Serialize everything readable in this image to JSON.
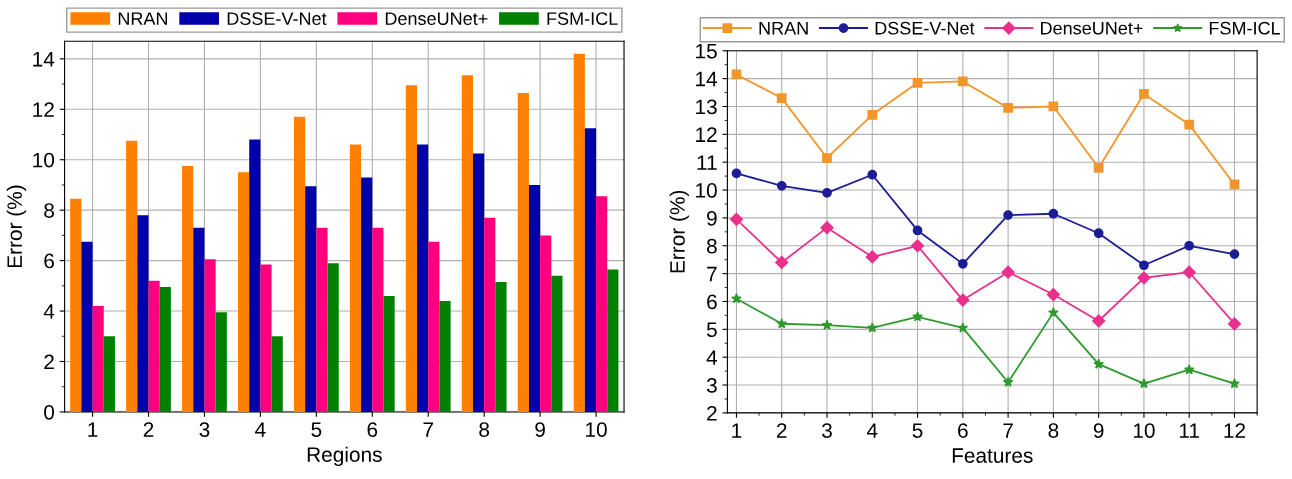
{
  "chart_data": [
    {
      "type": "bar",
      "xlabel": "Regions",
      "ylabel": "Error (%)",
      "categories": [
        "1",
        "2",
        "3",
        "4",
        "5",
        "6",
        "7",
        "8",
        "9",
        "10"
      ],
      "series": [
        {
          "name": "NRAN",
          "color": "#ff8000",
          "values": [
            8.45,
            10.75,
            9.75,
            9.5,
            11.7,
            10.6,
            12.95,
            13.35,
            12.65,
            14.2
          ]
        },
        {
          "name": "DSSE-V-Net",
          "color": "#0000a8",
          "values": [
            6.75,
            7.8,
            7.3,
            10.8,
            8.95,
            9.3,
            10.6,
            10.25,
            9.0,
            11.25
          ]
        },
        {
          "name": "DenseUNet+",
          "color": "#ff0080",
          "values": [
            4.2,
            5.2,
            6.05,
            5.85,
            7.3,
            7.3,
            6.75,
            7.7,
            7.0,
            8.55
          ]
        },
        {
          "name": "FSM-ICL",
          "color": "#008000",
          "values": [
            3.0,
            4.95,
            3.95,
            3.0,
            5.9,
            4.6,
            4.4,
            5.15,
            5.4,
            5.65
          ]
        }
      ],
      "ylim": [
        0,
        14.7
      ],
      "yticks": [
        0,
        2,
        4,
        6,
        8,
        10,
        12,
        14
      ],
      "grid": true,
      "legend": "top"
    },
    {
      "type": "line",
      "xlabel": "Features",
      "ylabel": "Error (%)",
      "x": [
        1,
        2,
        3,
        4,
        5,
        6,
        7,
        8,
        9,
        10,
        11,
        12
      ],
      "series": [
        {
          "name": "NRAN",
          "color": "#f2962b",
          "marker": "square",
          "values": [
            14.15,
            13.3,
            11.15,
            12.7,
            13.85,
            13.9,
            12.95,
            13.0,
            10.8,
            13.45,
            12.35,
            10.2
          ]
        },
        {
          "name": "DSSE-V-Net",
          "color": "#1c1c96",
          "marker": "circle",
          "values": [
            10.6,
            10.15,
            9.9,
            10.55,
            8.55,
            7.35,
            9.1,
            9.15,
            8.45,
            7.3,
            8.0,
            7.7
          ]
        },
        {
          "name": "DenseUNet+",
          "color": "#e8308c",
          "marker": "diamond",
          "values": [
            8.95,
            7.4,
            8.65,
            7.6,
            8.0,
            6.05,
            7.05,
            6.25,
            5.3,
            6.85,
            7.05,
            5.2
          ]
        },
        {
          "name": "FSM-ICL",
          "color": "#2e9a2e",
          "marker": "star",
          "values": [
            6.1,
            5.2,
            5.15,
            5.05,
            5.45,
            5.05,
            3.1,
            5.6,
            3.75,
            3.05,
            3.55,
            3.05
          ]
        }
      ],
      "xlim": [
        0.8,
        12.5
      ],
      "xticks": [
        1,
        2,
        3,
        4,
        5,
        6,
        7,
        8,
        9,
        10,
        11,
        12
      ],
      "ylim": [
        2,
        15
      ],
      "yticks": [
        2,
        3,
        4,
        5,
        6,
        7,
        8,
        9,
        10,
        11,
        12,
        13,
        14,
        15
      ],
      "grid": true,
      "legend": "top",
      "line_style": "solid"
    }
  ]
}
